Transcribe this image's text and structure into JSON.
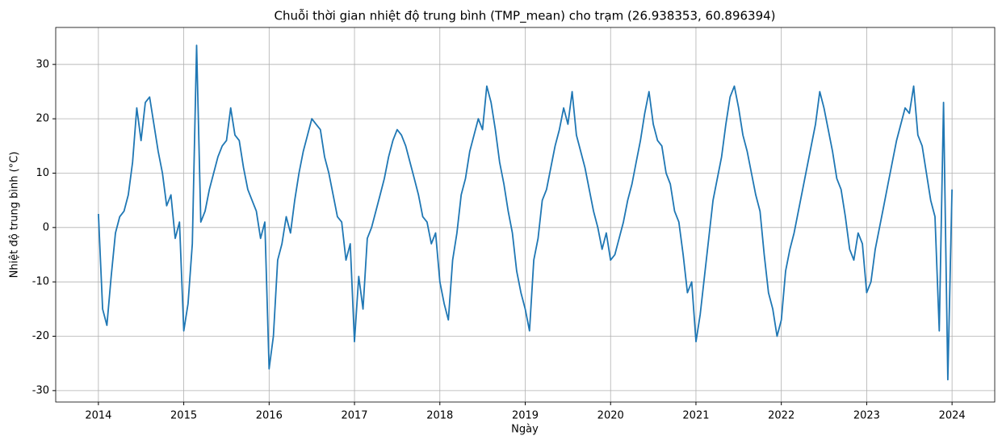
{
  "chart_data": {
    "type": "line",
    "title": "Chuỗi thời gian nhiệt độ trung bình (TMP_mean) cho trạm (26.938353, 60.896394)",
    "xlabel": "Ngày",
    "ylabel": "Nhiệt độ trung bình (°C)",
    "xlim": [
      2013.5,
      2024.5
    ],
    "xticks": [
      2014,
      2015,
      2016,
      2017,
      2018,
      2019,
      2020,
      2021,
      2022,
      2023,
      2024
    ],
    "ylim": [
      -32.1,
      36.8
    ],
    "yticks": [
      -30,
      -20,
      -10,
      0,
      10,
      20,
      30
    ],
    "grid": true,
    "series": [
      {
        "name": "TMP_mean",
        "color": "#1f77b4",
        "x": [
          2014,
          2014.05,
          2014.1,
          2014.15,
          2014.2,
          2014.25,
          2014.3,
          2014.35,
          2014.4,
          2014.45,
          2014.5,
          2014.55,
          2014.6,
          2014.65,
          2014.7,
          2014.75,
          2014.8,
          2014.85,
          2014.9,
          2014.95,
          2015,
          2015.05,
          2015.1,
          2015.15,
          2015.2,
          2015.25,
          2015.3,
          2015.35,
          2015.4,
          2015.45,
          2015.5,
          2015.55,
          2015.6,
          2015.65,
          2015.7,
          2015.75,
          2015.8,
          2015.85,
          2015.9,
          2015.95,
          2016,
          2016.05,
          2016.1,
          2016.15,
          2016.2,
          2016.25,
          2016.3,
          2016.35,
          2016.4,
          2016.45,
          2016.5,
          2016.55,
          2016.6,
          2016.65,
          2016.7,
          2016.75,
          2016.8,
          2016.85,
          2016.9,
          2016.95,
          2017,
          2017.05,
          2017.1,
          2017.15,
          2017.2,
          2017.25,
          2017.3,
          2017.35,
          2017.4,
          2017.45,
          2017.5,
          2017.55,
          2017.6,
          2017.65,
          2017.7,
          2017.75,
          2017.8,
          2017.85,
          2017.9,
          2017.95,
          2018,
          2018.05,
          2018.1,
          2018.15,
          2018.2,
          2018.25,
          2018.3,
          2018.35,
          2018.4,
          2018.45,
          2018.5,
          2018.55,
          2018.6,
          2018.65,
          2018.7,
          2018.75,
          2018.8,
          2018.85,
          2018.9,
          2018.95,
          2019,
          2019.05,
          2019.1,
          2019.15,
          2019.2,
          2019.25,
          2019.3,
          2019.35,
          2019.4,
          2019.45,
          2019.5,
          2019.55,
          2019.6,
          2019.65,
          2019.7,
          2019.75,
          2019.8,
          2019.85,
          2019.9,
          2019.95,
          2020,
          2020.05,
          2020.1,
          2020.15,
          2020.2,
          2020.25,
          2020.3,
          2020.35,
          2020.4,
          2020.45,
          2020.5,
          2020.55,
          2020.6,
          2020.65,
          2020.7,
          2020.75,
          2020.8,
          2020.85,
          2020.9,
          2020.95,
          2021,
          2021.05,
          2021.1,
          2021.15,
          2021.2,
          2021.25,
          2021.3,
          2021.35,
          2021.4,
          2021.45,
          2021.5,
          2021.55,
          2021.6,
          2021.65,
          2021.7,
          2021.75,
          2021.8,
          2021.85,
          2021.9,
          2021.95,
          2022,
          2022.05,
          2022.1,
          2022.15,
          2022.2,
          2022.25,
          2022.3,
          2022.35,
          2022.4,
          2022.45,
          2022.5,
          2022.55,
          2022.6,
          2022.65,
          2022.7,
          2022.75,
          2022.8,
          2022.85,
          2022.9,
          2022.95,
          2023,
          2023.05,
          2023.1,
          2023.15,
          2023.2,
          2023.25,
          2023.3,
          2023.35,
          2023.4,
          2023.45,
          2023.5,
          2023.55,
          2023.6,
          2023.65,
          2023.7,
          2023.75,
          2023.8,
          2023.85,
          2023.9,
          2023.95,
          2024
        ],
        "values": [
          2.5,
          -15,
          -18,
          -9,
          -1,
          2,
          3,
          6,
          12,
          22,
          16,
          23,
          24,
          19,
          14,
          10,
          4,
          6,
          -2,
          1,
          -19,
          -14,
          -3,
          33.5,
          1,
          3,
          7,
          10,
          13,
          15,
          16,
          22,
          17,
          16,
          11,
          7,
          5,
          3,
          -2,
          1,
          -26,
          -20,
          -6,
          -3,
          2,
          -1,
          5,
          10,
          14,
          17,
          20,
          19,
          18,
          13,
          10,
          6,
          2,
          1,
          -6,
          -3,
          -21,
          -9,
          -15,
          -2,
          0,
          3,
          6,
          9,
          13,
          16,
          18,
          17,
          15,
          12,
          9,
          6,
          2,
          1,
          -3,
          -1,
          -10,
          -14,
          -17,
          -6,
          -1,
          6,
          9,
          14,
          17,
          20,
          18,
          26,
          23,
          18,
          12,
          8,
          3,
          -1,
          -8,
          -12,
          -15,
          -19,
          -6,
          -2,
          5,
          7,
          11,
          15,
          18,
          22,
          19,
          25,
          17,
          14,
          11,
          7,
          3,
          0,
          -4,
          -1,
          -6,
          -5,
          -2,
          1,
          5,
          8,
          12,
          16,
          21,
          25,
          19,
          16,
          15,
          10,
          8,
          3,
          1,
          -5,
          -12,
          -10,
          -21,
          -16,
          -9,
          -2,
          5,
          9,
          13,
          19,
          24,
          26,
          22,
          17,
          14,
          10,
          6,
          3,
          -5,
          -12,
          -15,
          -20,
          -17,
          -8,
          -4,
          -1,
          3,
          7,
          11,
          15,
          19,
          25,
          22,
          18,
          14,
          9,
          7,
          2,
          -4,
          -6,
          -1,
          -3,
          -12,
          -10,
          -4,
          0,
          4,
          8,
          12,
          16,
          19,
          22,
          21,
          26,
          17,
          15,
          10,
          5,
          2,
          -19,
          23,
          -28,
          7
        ]
      }
    ]
  }
}
